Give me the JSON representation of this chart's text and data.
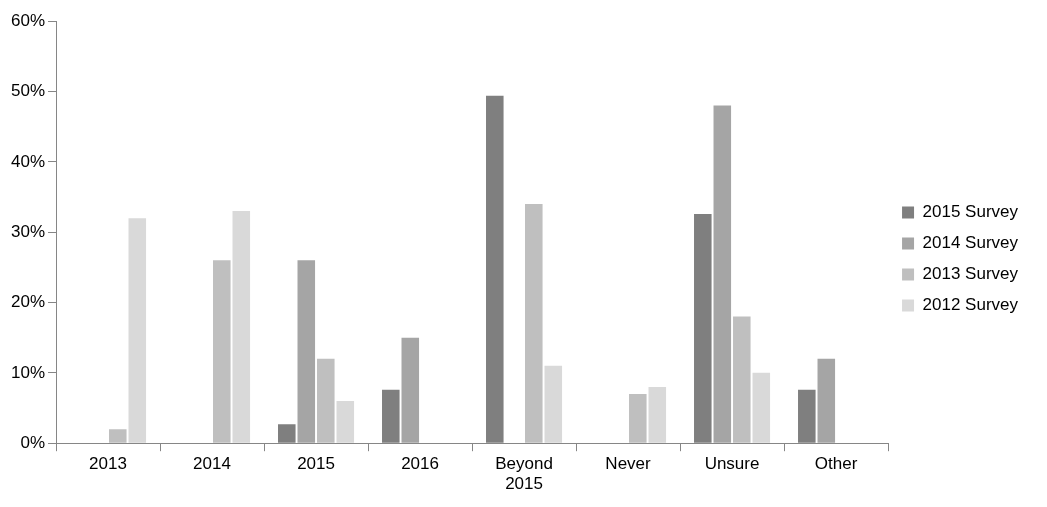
{
  "chart_data": {
    "type": "bar",
    "categories": [
      "2013",
      "2014",
      "2015",
      "2016",
      "Beyond 2015",
      "Never",
      "Unsure",
      "Other"
    ],
    "series": [
      {
        "name": "2015 Survey",
        "color": "#7f7f7f",
        "values": [
          null,
          null,
          2.7,
          7.6,
          49.4,
          null,
          32.6,
          7.6
        ]
      },
      {
        "name": "2014 Survey",
        "color": "#a5a5a5",
        "values": [
          null,
          null,
          26,
          15,
          null,
          null,
          48,
          12
        ]
      },
      {
        "name": "2013 Survey",
        "color": "#bfbfbf",
        "values": [
          2,
          26,
          12,
          null,
          34,
          7,
          18,
          null
        ]
      },
      {
        "name": "2012 Survey",
        "color": "#d9d9d9",
        "values": [
          32,
          33,
          6,
          null,
          11,
          8,
          10,
          null
        ]
      }
    ],
    "ylim": [
      0,
      60
    ],
    "yticks": [
      {
        "value": 0,
        "label": "0%"
      },
      {
        "value": 10,
        "label": "10%"
      },
      {
        "value": 20,
        "label": "20%"
      },
      {
        "value": 30,
        "label": "30%"
      },
      {
        "value": 40,
        "label": "40%"
      },
      {
        "value": 50,
        "label": "50%"
      },
      {
        "value": 60,
        "label": "60%"
      }
    ],
    "grid": false,
    "legend": "right"
  }
}
